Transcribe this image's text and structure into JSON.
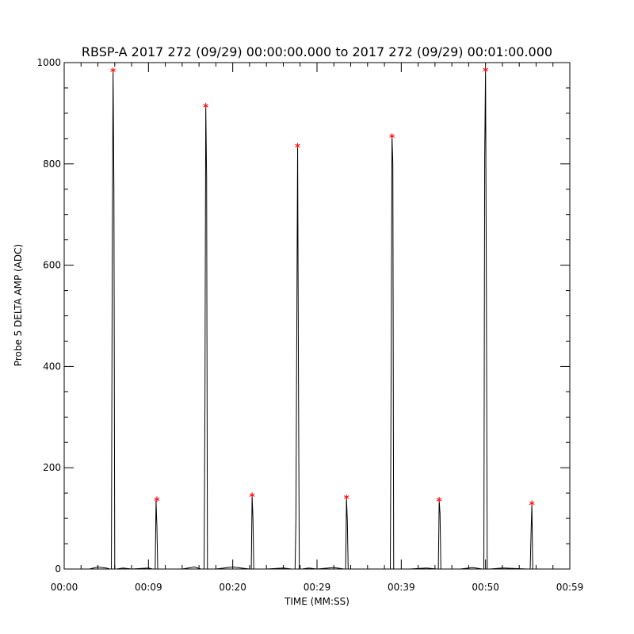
{
  "chart_data": {
    "type": "line",
    "title": "RBSP-A 2017 272 (09/29) 00:00:00.000 to 2017 272 (09/29) 00:01:00.000",
    "xlabel": "TIME (MM:SS)",
    "ylabel": "Probe 5 DELTA AMP (ADC)",
    "xlim": [
      0,
      60
    ],
    "ylim": [
      0,
      1000
    ],
    "x_ticks": [
      {
        "value": 0,
        "label": "00:00"
      },
      {
        "value": 10,
        "label": "00:09"
      },
      {
        "value": 20,
        "label": "00:20"
      },
      {
        "value": 30,
        "label": "00:29"
      },
      {
        "value": 40,
        "label": "00:39"
      },
      {
        "value": 50,
        "label": "00:50"
      },
      {
        "value": 60,
        "label": "00:59"
      }
    ],
    "y_ticks": [
      {
        "value": 0,
        "label": "0"
      },
      {
        "value": 200,
        "label": "200"
      },
      {
        "value": 400,
        "label": "400"
      },
      {
        "value": 600,
        "label": "600"
      },
      {
        "value": 800,
        "label": "800"
      },
      {
        "value": 1000,
        "label": "1000"
      }
    ],
    "grid": false,
    "line_color": "#000000",
    "marker_color": "#ff0000",
    "series": [
      {
        "values": [
          [
            0,
            0
          ],
          [
            3,
            0
          ],
          [
            4,
            4
          ],
          [
            5,
            2
          ],
          [
            5.4,
            0
          ],
          [
            5.6,
            0
          ],
          [
            5.7,
            590
          ],
          [
            5.8,
            985
          ],
          [
            5.9,
            750
          ],
          [
            6.0,
            0
          ],
          [
            6.2,
            0
          ],
          [
            7,
            2
          ],
          [
            8,
            0
          ],
          [
            10,
            2
          ],
          [
            10.5,
            0
          ],
          [
            10.8,
            0
          ],
          [
            10.9,
            135
          ],
          [
            11.0,
            85
          ],
          [
            11.1,
            0
          ],
          [
            11.4,
            0
          ],
          [
            14,
            0
          ],
          [
            15.5,
            4
          ],
          [
            16.2,
            0
          ],
          [
            16.6,
            0
          ],
          [
            16.7,
            320
          ],
          [
            16.8,
            915
          ],
          [
            16.9,
            775
          ],
          [
            17.0,
            0
          ],
          [
            17.2,
            0
          ],
          [
            18,
            0
          ],
          [
            20,
            4
          ],
          [
            21,
            2
          ],
          [
            22.0,
            0
          ],
          [
            22.2,
            0
          ],
          [
            22.3,
            145
          ],
          [
            22.4,
            100
          ],
          [
            22.5,
            0
          ],
          [
            22.8,
            0
          ],
          [
            24,
            0
          ],
          [
            26,
            2
          ],
          [
            27,
            0
          ],
          [
            27.4,
            0
          ],
          [
            27.5,
            100
          ],
          [
            27.6,
            465
          ],
          [
            27.7,
            835
          ],
          [
            27.8,
            380
          ],
          [
            27.9,
            0
          ],
          [
            28.2,
            0
          ],
          [
            29,
            2
          ],
          [
            30,
            0
          ],
          [
            32,
            3
          ],
          [
            33.2,
            0
          ],
          [
            33.4,
            0
          ],
          [
            33.5,
            140
          ],
          [
            33.6,
            95
          ],
          [
            33.7,
            0
          ],
          [
            34,
            0
          ],
          [
            36,
            0
          ],
          [
            38,
            0
          ],
          [
            38.5,
            0
          ],
          [
            38.7,
            0
          ],
          [
            38.8,
            400
          ],
          [
            38.9,
            855
          ],
          [
            39.0,
            800
          ],
          [
            39.1,
            0
          ],
          [
            39.4,
            0
          ],
          [
            41,
            0
          ],
          [
            43,
            2
          ],
          [
            44.2,
            0
          ],
          [
            44.4,
            0
          ],
          [
            44.5,
            135
          ],
          [
            44.6,
            110
          ],
          [
            44.7,
            0
          ],
          [
            45,
            0
          ],
          [
            47,
            0
          ],
          [
            48.5,
            3
          ],
          [
            49.6,
            0
          ],
          [
            49.8,
            0
          ],
          [
            49.9,
            815
          ],
          [
            50.0,
            985
          ],
          [
            50.1,
            550
          ],
          [
            50.2,
            0
          ],
          [
            50.5,
            0
          ],
          [
            52,
            2
          ],
          [
            55,
            0
          ],
          [
            55.3,
            0
          ],
          [
            55.4,
            70
          ],
          [
            55.5,
            128
          ],
          [
            55.6,
            0
          ],
          [
            55.9,
            0
          ],
          [
            58,
            0
          ],
          [
            60,
            0
          ]
        ]
      }
    ],
    "peaks": [
      {
        "x": 5.8,
        "y": 985
      },
      {
        "x": 11.0,
        "y": 138
      },
      {
        "x": 16.8,
        "y": 915
      },
      {
        "x": 22.3,
        "y": 146
      },
      {
        "x": 27.7,
        "y": 836
      },
      {
        "x": 33.5,
        "y": 142
      },
      {
        "x": 38.9,
        "y": 855
      },
      {
        "x": 44.5,
        "y": 137
      },
      {
        "x": 50.0,
        "y": 986
      },
      {
        "x": 55.5,
        "y": 130
      }
    ]
  }
}
